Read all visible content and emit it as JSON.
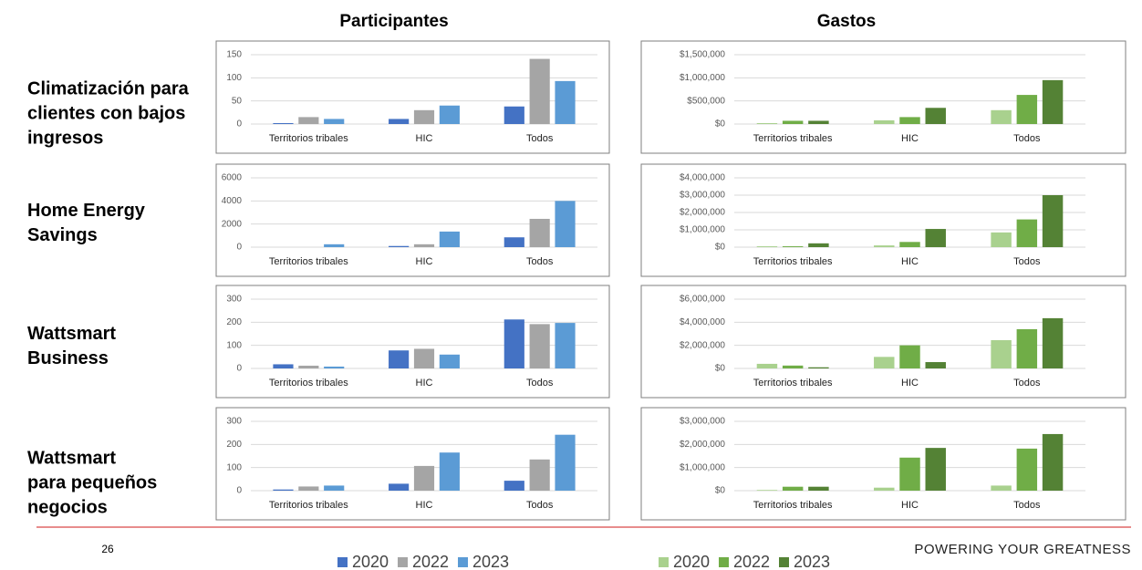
{
  "column_titles": [
    "Participantes",
    "Gastos"
  ],
  "row_labels": [
    [
      "Climatización para",
      "clientes con bajos",
      "ingresos"
    ],
    [
      "Home Energy",
      "Savings"
    ],
    [
      "Wattsmart",
      "Business"
    ],
    [
      "Wattsmart",
      "para pequeños",
      "negocios"
    ]
  ],
  "page_number": "26",
  "footer": "POWERING YOUR GREATNESS",
  "chart_data": [
    {
      "type": "bar",
      "categories": [
        "Territorios tribales",
        "HIC",
        "Todos"
      ],
      "ylim": [
        0,
        150
      ],
      "yticks": [
        0,
        50,
        100,
        150
      ],
      "series": [
        {
          "name": "2020",
          "color": "#4472c4",
          "values": [
            2,
            11,
            38
          ]
        },
        {
          "name": "2022",
          "color": "#a5a5a5",
          "values": [
            15,
            30,
            141
          ]
        },
        {
          "name": "2023",
          "color": "#5b9bd5",
          "values": [
            11,
            40,
            93
          ]
        }
      ]
    },
    {
      "type": "bar",
      "categories": [
        "Territorios tribales",
        "HIC",
        "Todos"
      ],
      "ylim": [
        0,
        1500000
      ],
      "yticks": [
        {
          "value": 0,
          "label": "$0"
        },
        {
          "value": 500000,
          "label": "$500,000"
        },
        {
          "value": 1000000,
          "label": "$1,000,000"
        },
        {
          "value": 1500000,
          "label": "$1,500,000"
        }
      ],
      "series": [
        {
          "name": "2020",
          "color": "#a9d18e",
          "values": [
            20000,
            80000,
            300000
          ]
        },
        {
          "name": "2022",
          "color": "#70ad47",
          "values": [
            70000,
            150000,
            630000
          ]
        },
        {
          "name": "2023",
          "color": "#548235",
          "values": [
            70000,
            350000,
            950000
          ]
        }
      ]
    },
    {
      "type": "bar",
      "categories": [
        "Territorios tribales",
        "HIC",
        "Todos"
      ],
      "ylim": [
        0,
        6000
      ],
      "yticks": [
        0,
        2000,
        4000,
        6000
      ],
      "series": [
        {
          "name": "2020",
          "color": "#4472c4",
          "values": [
            0,
            100,
            850
          ]
        },
        {
          "name": "2022",
          "color": "#a5a5a5",
          "values": [
            0,
            250,
            2450
          ]
        },
        {
          "name": "2023",
          "color": "#5b9bd5",
          "values": [
            250,
            1350,
            4000
          ]
        }
      ]
    },
    {
      "type": "bar",
      "categories": [
        "Territorios tribales",
        "HIC",
        "Todos"
      ],
      "ylim": [
        0,
        4000000
      ],
      "yticks": [
        {
          "value": 0,
          "label": "$0"
        },
        {
          "value": 1000000,
          "label": "$1,000,000"
        },
        {
          "value": 2000000,
          "label": "$2,000,000"
        },
        {
          "value": 3000000,
          "label": "$3,000,000"
        },
        {
          "value": 4000000,
          "label": "$4,000,000"
        }
      ],
      "series": [
        {
          "name": "2020",
          "color": "#a9d18e",
          "values": [
            50000,
            100000,
            850000
          ]
        },
        {
          "name": "2022",
          "color": "#70ad47",
          "values": [
            50000,
            300000,
            1600000
          ]
        },
        {
          "name": "2023",
          "color": "#548235",
          "values": [
            220000,
            1050000,
            3000000
          ]
        }
      ]
    },
    {
      "type": "bar",
      "categories": [
        "Territorios tribales",
        "HIC",
        "Todos"
      ],
      "ylim": [
        0,
        300
      ],
      "yticks": [
        0,
        100,
        200,
        300
      ],
      "series": [
        {
          "name": "2020",
          "color": "#4472c4",
          "values": [
            18,
            78,
            212
          ]
        },
        {
          "name": "2022",
          "color": "#a5a5a5",
          "values": [
            12,
            85,
            192
          ]
        },
        {
          "name": "2023",
          "color": "#5b9bd5",
          "values": [
            8,
            60,
            197
          ]
        }
      ]
    },
    {
      "type": "bar",
      "categories": [
        "Territorios tribales",
        "HIC",
        "Todos"
      ],
      "ylim": [
        0,
        6000000
      ],
      "yticks": [
        {
          "value": 0,
          "label": "$0"
        },
        {
          "value": 2000000,
          "label": "$2,000,000"
        },
        {
          "value": 4000000,
          "label": "$4,000,000"
        },
        {
          "value": 6000000,
          "label": "$6,000,000"
        }
      ],
      "series": [
        {
          "name": "2020",
          "color": "#a9d18e",
          "values": [
            400000,
            1000000,
            2450000
          ]
        },
        {
          "name": "2022",
          "color": "#70ad47",
          "values": [
            250000,
            2000000,
            3400000
          ]
        },
        {
          "name": "2023",
          "color": "#548235",
          "values": [
            100000,
            550000,
            4350000
          ]
        }
      ]
    },
    {
      "type": "bar",
      "categories": [
        "Territorios tribales",
        "HIC",
        "Todos"
      ],
      "ylim": [
        0,
        300
      ],
      "yticks": [
        0,
        100,
        200,
        300
      ],
      "series": [
        {
          "name": "2020",
          "color": "#4472c4",
          "values": [
            5,
            30,
            43
          ]
        },
        {
          "name": "2022",
          "color": "#a5a5a5",
          "values": [
            18,
            107,
            135
          ]
        },
        {
          "name": "2023",
          "color": "#5b9bd5",
          "values": [
            22,
            165,
            242
          ]
        }
      ]
    },
    {
      "type": "bar",
      "categories": [
        "Territorios tribales",
        "HIC",
        "Todos"
      ],
      "ylim": [
        0,
        3000000
      ],
      "yticks": [
        {
          "value": 0,
          "label": "$0"
        },
        {
          "value": 1000000,
          "label": "$1,000,000"
        },
        {
          "value": 2000000,
          "label": "$2,000,000"
        },
        {
          "value": 3000000,
          "label": "$3,000,000"
        }
      ],
      "series": [
        {
          "name": "2020",
          "color": "#a9d18e",
          "values": [
            30000,
            130000,
            220000
          ]
        },
        {
          "name": "2022",
          "color": "#70ad47",
          "values": [
            170000,
            1430000,
            1820000
          ]
        },
        {
          "name": "2023",
          "color": "#548235",
          "values": [
            170000,
            1850000,
            2450000
          ]
        }
      ]
    }
  ]
}
